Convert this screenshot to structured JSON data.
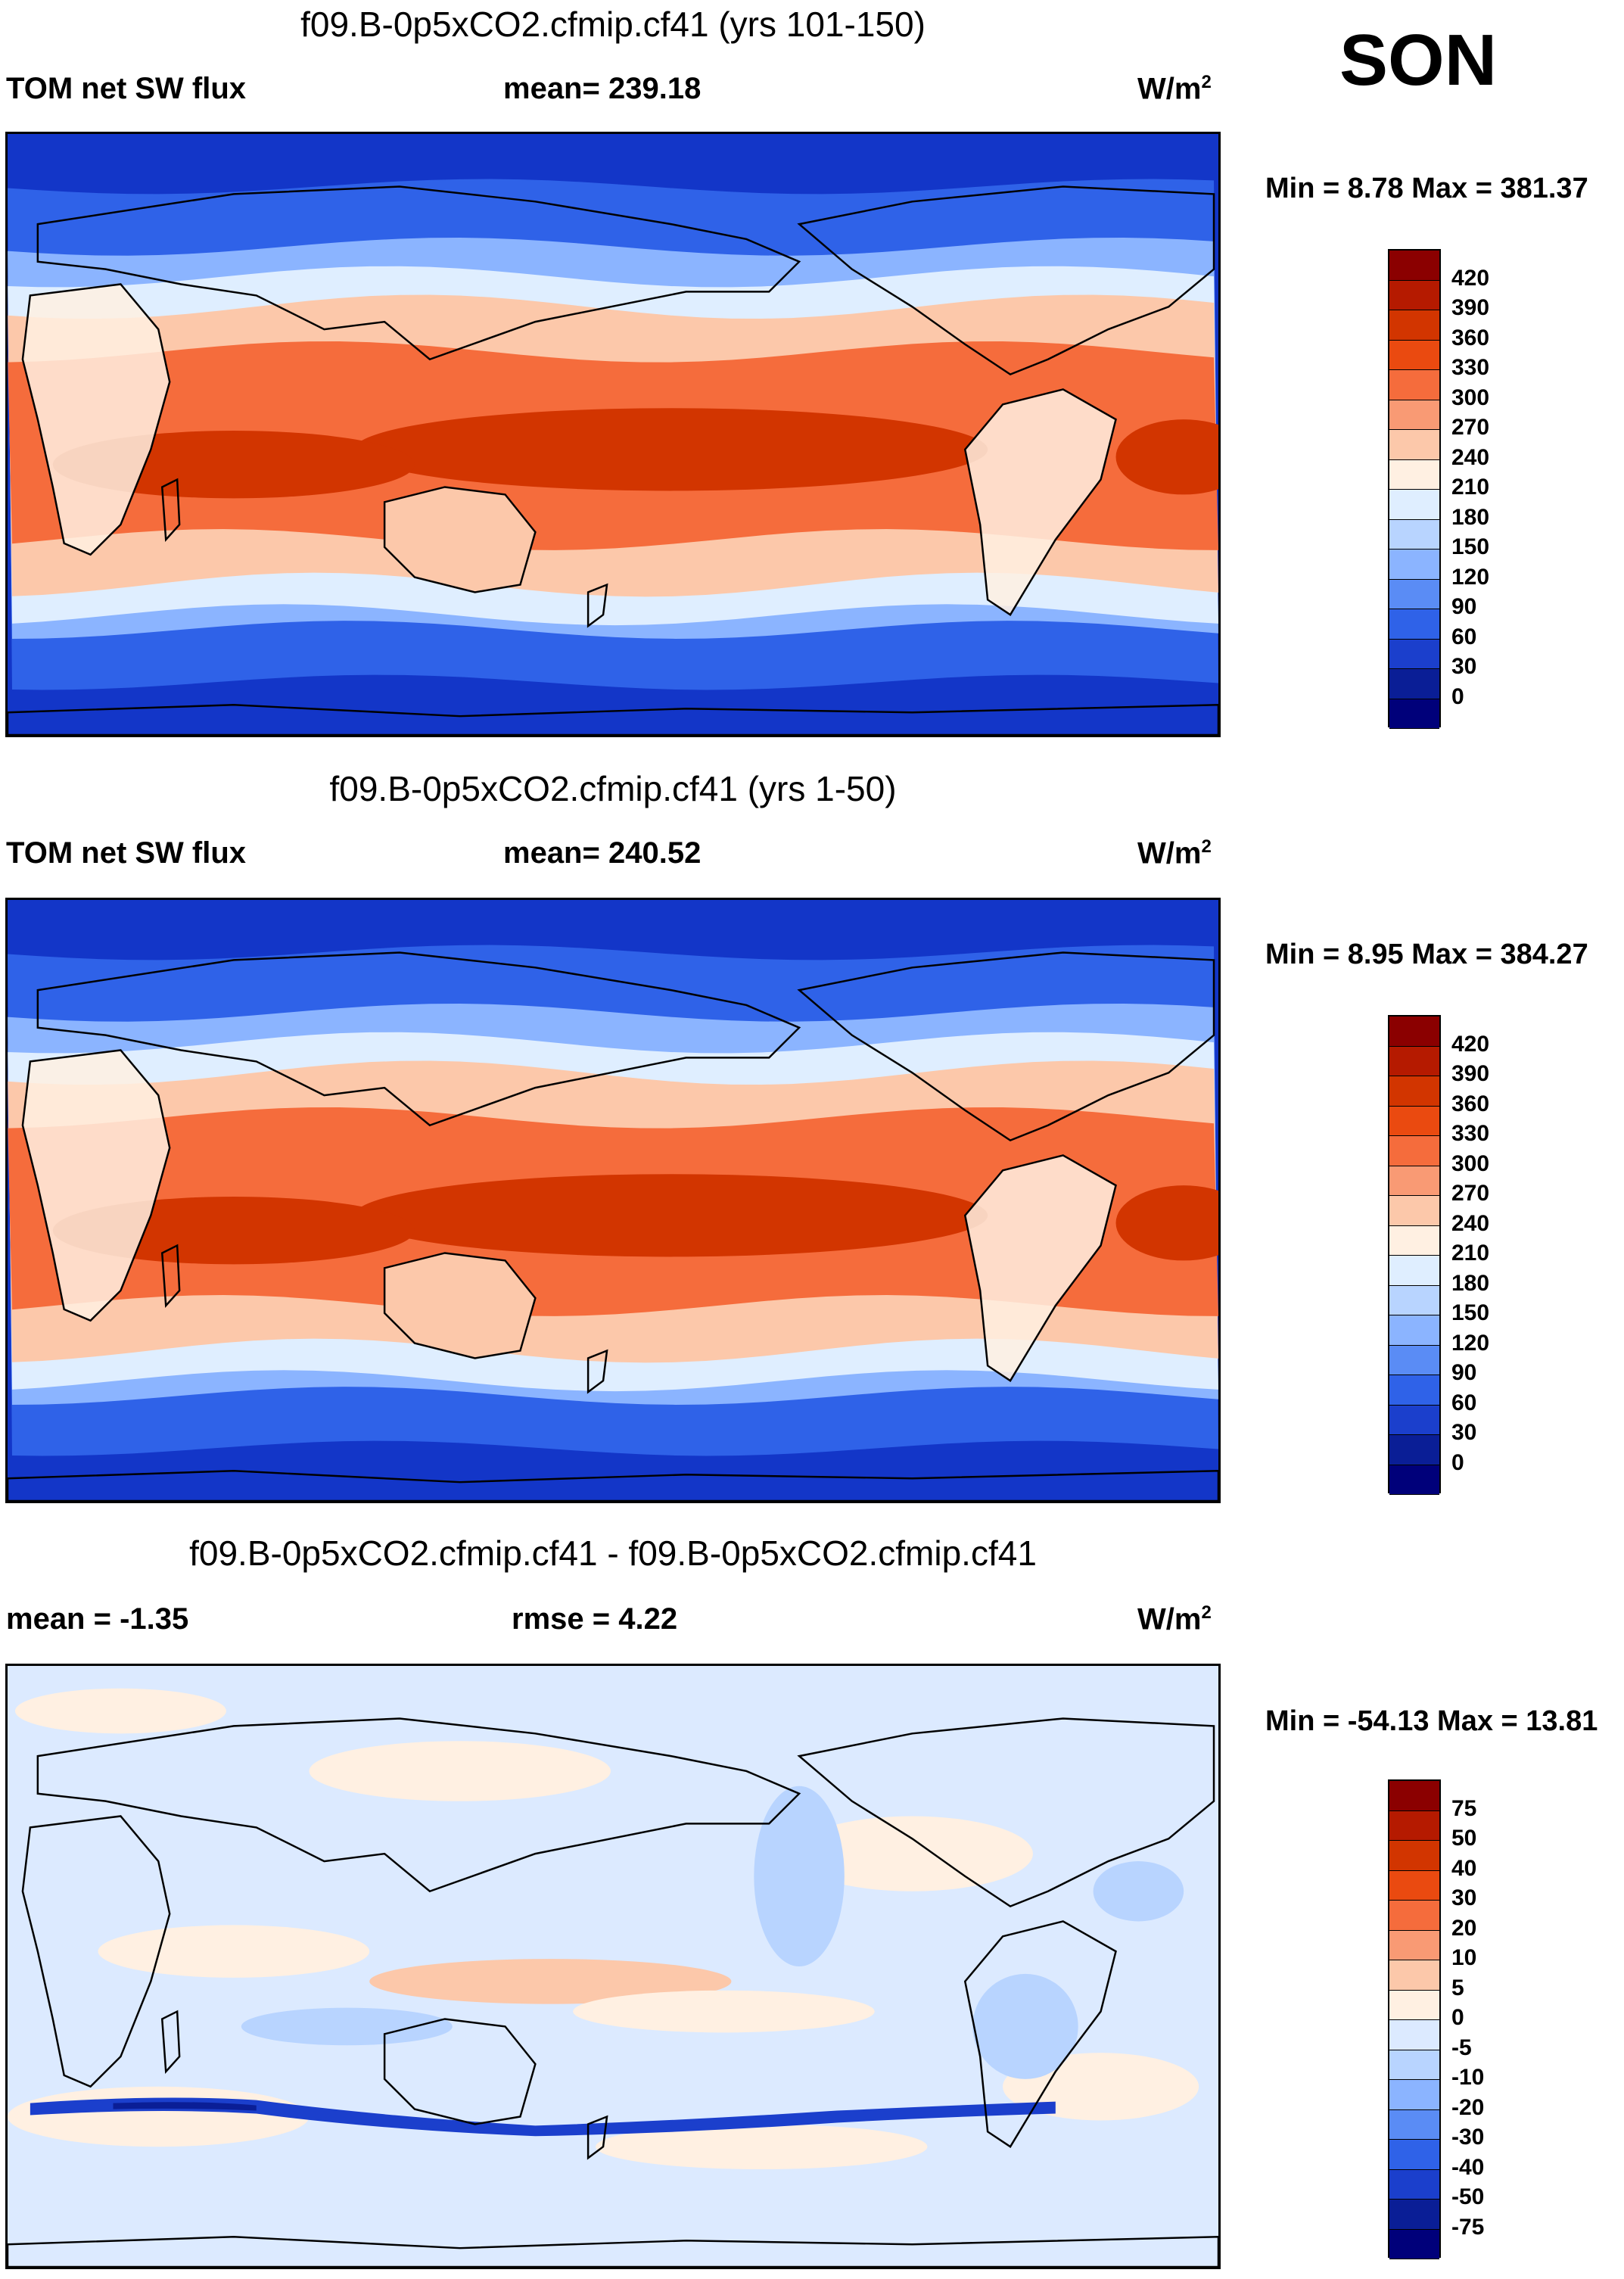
{
  "season": "SON",
  "panels": [
    {
      "title": "f09.B-0p5xCO2.cfmip.cf41 (yrs 101-150)",
      "left_label": "TOM net SW flux",
      "center_label": "mean= 239.18",
      "units": "W/m",
      "units_sup": "2",
      "minmax": "Min =   8.78 Max = 381.37",
      "colorbar_labels": [
        "420",
        "390",
        "360",
        "330",
        "300",
        "270",
        "240",
        "210",
        "180",
        "150",
        "120",
        "90",
        "60",
        "30",
        "0"
      ],
      "colorbar_colors": [
        "#8b0000",
        "#b51a00",
        "#d23500",
        "#ea4a10",
        "#f56c3c",
        "#f99a74",
        "#fcc8aa",
        "#fff0e2",
        "#dfeeff",
        "#b8d4ff",
        "#8bb4ff",
        "#5a8cf5",
        "#2f62e8",
        "#1b3fcc",
        "#0a1e96",
        "#00007a"
      ],
      "map_colors": {
        "polar": "#1336c8",
        "subpolar": "#2f62e8",
        "midlat": "#8bb4ff",
        "transition": "#dfeeff",
        "subtrop": "#fcc8aa",
        "trop": "#f56c3c",
        "deep": "#d23500",
        "land": "#fff0e2"
      }
    },
    {
      "title": "f09.B-0p5xCO2.cfmip.cf41 (yrs 1-50)",
      "left_label": "TOM net SW flux",
      "center_label": "mean= 240.52",
      "units": "W/m",
      "units_sup": "2",
      "minmax": "Min =   8.95 Max = 384.27",
      "colorbar_labels": [
        "420",
        "390",
        "360",
        "330",
        "300",
        "270",
        "240",
        "210",
        "180",
        "150",
        "120",
        "90",
        "60",
        "30",
        "0"
      ],
      "colorbar_colors": [
        "#8b0000",
        "#b51a00",
        "#d23500",
        "#ea4a10",
        "#f56c3c",
        "#f99a74",
        "#fcc8aa",
        "#fff0e2",
        "#dfeeff",
        "#b8d4ff",
        "#8bb4ff",
        "#5a8cf5",
        "#2f62e8",
        "#1b3fcc",
        "#0a1e96",
        "#00007a"
      ],
      "map_colors": {
        "polar": "#1336c8",
        "subpolar": "#2f62e8",
        "midlat": "#8bb4ff",
        "transition": "#dfeeff",
        "subtrop": "#fcc8aa",
        "trop": "#f56c3c",
        "deep": "#d23500",
        "land": "#fff0e2"
      }
    },
    {
      "title": "f09.B-0p5xCO2.cfmip.cf41 - f09.B-0p5xCO2.cfmip.cf41",
      "left_label": "mean =  -1.35",
      "center_label": "rmse =   4.22",
      "units": "W/m",
      "units_sup": "2",
      "minmax": "Min = -54.13 Max =  13.81",
      "colorbar_labels": [
        "75",
        "50",
        "40",
        "30",
        "20",
        "10",
        "5",
        "0",
        "-5",
        "-10",
        "-20",
        "-30",
        "-40",
        "-50",
        "-75"
      ],
      "colorbar_colors": [
        "#8b0000",
        "#b51a00",
        "#d23500",
        "#ea4a10",
        "#f56c3c",
        "#f99a74",
        "#fcc8aa",
        "#fff0e2",
        "#dceaff",
        "#b8d4ff",
        "#8bb4ff",
        "#5a8cf5",
        "#2f62e8",
        "#1b3fcc",
        "#0a1e96",
        "#00007a"
      ],
      "map_colors": {
        "background": "#dceaff",
        "warm": "#fff0e2",
        "warmer": "#fcc8aa",
        "cool": "#b8d4ff",
        "band": "#1b3fcc",
        "band_core": "#0a1e96"
      }
    }
  ]
}
